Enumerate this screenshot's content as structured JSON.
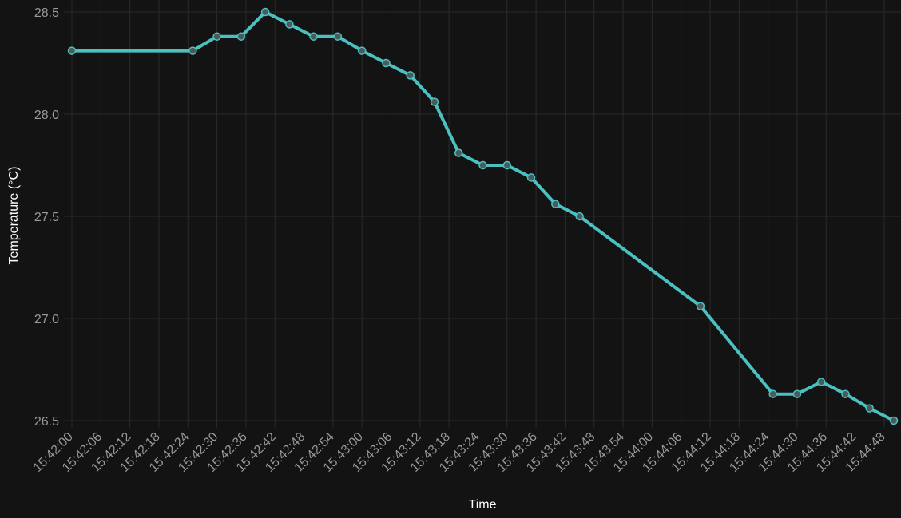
{
  "chart_data": {
    "type": "line",
    "title": "",
    "xlabel": "Time",
    "ylabel": "Temperature (°C)",
    "ylim": [
      26.5,
      28.5
    ],
    "yticks": [
      "26.5",
      "27.0",
      "27.5",
      "28.0",
      "28.5"
    ],
    "xticks": [
      "15:42:00",
      "15:42:06",
      "15:42:12",
      "15:42:18",
      "15:42:24",
      "15:42:30",
      "15:42:36",
      "15:42:42",
      "15:42:48",
      "15:42:54",
      "15:43:00",
      "15:43:06",
      "15:43:12",
      "15:43:18",
      "15:43:24",
      "15:43:30",
      "15:43:36",
      "15:43:42",
      "15:43:48",
      "15:43:54",
      "15:44:00",
      "15:44:06",
      "15:44:12",
      "15:44:18",
      "15:44:24",
      "15:44:30",
      "15:44:36",
      "15:44:42",
      "15:44:48"
    ],
    "xlim": [
      "15:42:00",
      "15:44:50"
    ],
    "grid": true,
    "line_color": "#4bc0c0",
    "series": [
      {
        "name": "",
        "x": [
          "15:42:00",
          "15:42:25",
          "15:42:30",
          "15:42:35",
          "15:42:40",
          "15:42:45",
          "15:42:50",
          "15:42:55",
          "15:43:00",
          "15:43:05",
          "15:43:10",
          "15:43:15",
          "15:43:20",
          "15:43:25",
          "15:43:30",
          "15:43:35",
          "15:43:40",
          "15:43:45",
          "15:44:10",
          "15:44:25",
          "15:44:30",
          "15:44:35",
          "15:44:40",
          "15:44:45",
          "15:44:50"
        ],
        "y": [
          28.31,
          28.31,
          28.38,
          28.38,
          28.5,
          28.44,
          28.38,
          28.38,
          28.31,
          28.25,
          28.19,
          28.06,
          27.81,
          27.75,
          27.75,
          27.69,
          27.56,
          27.5,
          27.06,
          26.63,
          26.63,
          26.69,
          26.63,
          26.56,
          26.5
        ]
      }
    ]
  }
}
